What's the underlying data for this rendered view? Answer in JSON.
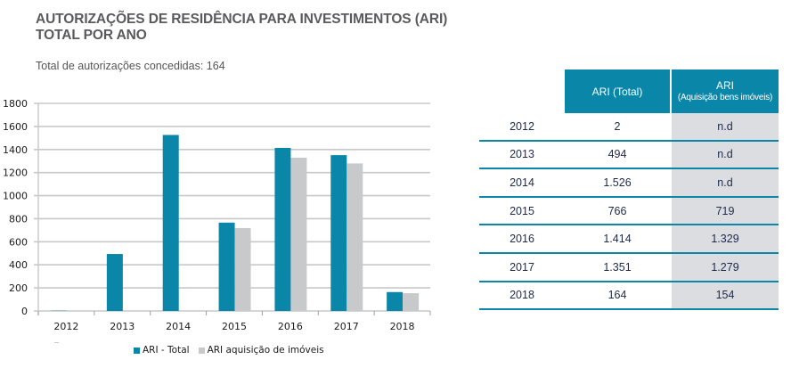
{
  "header": {
    "title_line1": "AUTORIZAÇÕES DE RESIDÊNCIA PARA INVESTIMENTOS (ARI)",
    "title_line2": "TOTAL POR ANO",
    "subtitle": "Total de autorizações concedidas: 164"
  },
  "colors": {
    "ari_total": "#0a86a8",
    "ari_imoveis": "#c8c9cb",
    "grid": "#c8c8c8",
    "table_shade": "#dcdde0"
  },
  "chart_data": {
    "type": "bar",
    "title": "AUTORIZAÇÕES DE RESIDÊNCIA PARA INVESTIMENTOS (ARI) TOTAL POR ANO",
    "xlabel": "",
    "ylabel": "",
    "categories": [
      "2012",
      "2013",
      "2014",
      "2015",
      "2016",
      "2017",
      "2018"
    ],
    "series": [
      {
        "name": "ARI - Total",
        "values": [
          2,
          494,
          1526,
          766,
          1414,
          1351,
          164
        ]
      },
      {
        "name": "ARI aquisição de imóveis",
        "values": [
          null,
          null,
          null,
          719,
          1329,
          1279,
          154
        ]
      }
    ],
    "ylim": [
      0,
      1800
    ],
    "yticks": [
      0,
      200,
      400,
      600,
      800,
      1000,
      1200,
      1400,
      1600,
      1800
    ],
    "grid": true,
    "legend_position": "bottom"
  },
  "table": {
    "headers": [
      "ARI (Total)",
      "ARI",
      "(Aquisição bens imóveis)"
    ],
    "rows": [
      {
        "year": "2012",
        "total": "2",
        "imoveis": "n.d"
      },
      {
        "year": "2013",
        "total": "494",
        "imoveis": "n.d"
      },
      {
        "year": "2014",
        "total": "1.526",
        "imoveis": "n.d"
      },
      {
        "year": "2015",
        "total": "766",
        "imoveis": "719"
      },
      {
        "year": "2016",
        "total": "1.414",
        "imoveis": "1.329"
      },
      {
        "year": "2017",
        "total": "1.351",
        "imoveis": "1.279"
      },
      {
        "year": "2018",
        "total": "164",
        "imoveis": "154"
      }
    ]
  }
}
